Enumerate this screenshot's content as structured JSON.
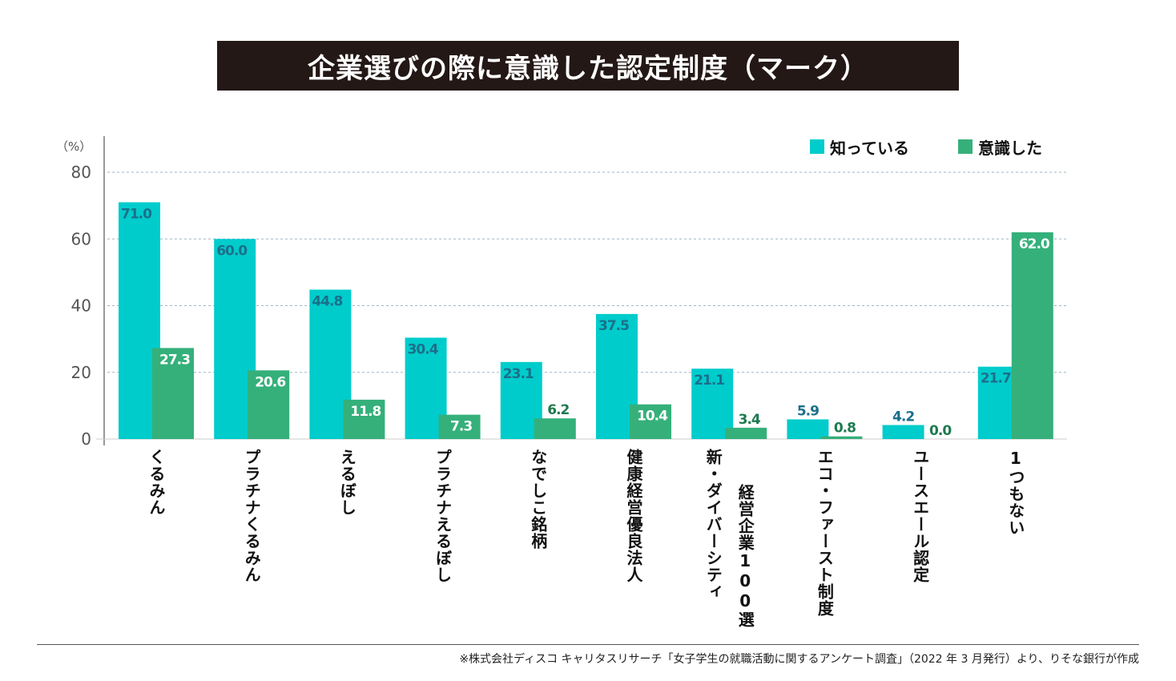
{
  "chart_data": {
    "type": "bar",
    "title": "企業選びの際に意識した認定制度（マーク）",
    "ylabel": "（%）",
    "xlabel": "",
    "ylim": [
      0,
      80
    ],
    "yticks": [
      0,
      20,
      40,
      60,
      80
    ],
    "grid": true,
    "legend_position": "top-right",
    "categories": [
      "くるみん",
      "プラチナくるみん",
      "えるぼし",
      "プラチナえるぼし",
      "なでしこ銘柄",
      "健康経営優良法人",
      "新・ダイバーシティ経営企業100選",
      "エコ・ファースト制度",
      "ユースエール認定",
      "1つもない"
    ],
    "category_display_lines": [
      [
        "くるみん"
      ],
      [
        "プラチナくるみん"
      ],
      [
        "えるぼし"
      ],
      [
        "プラチナえるぼし"
      ],
      [
        "なでしこ銘柄"
      ],
      [
        "健康経営優良法人"
      ],
      [
        "新・ダイバーシティ",
        "経営企業100選"
      ],
      [
        "エコ・ファースト制度"
      ],
      [
        "ユースエール認定"
      ],
      [
        "1つもない"
      ]
    ],
    "series": [
      {
        "name": "知っている",
        "color": "#00CCCC",
        "label_color": "#1B6F8A",
        "values": [
          71.0,
          60.0,
          44.8,
          30.4,
          23.1,
          37.5,
          21.1,
          5.9,
          4.2,
          21.7
        ]
      },
      {
        "name": "意識した",
        "color": "#35B07A",
        "label_color": "#FFFFFF",
        "label_color_outside": "#1E7A4F",
        "values": [
          27.3,
          20.6,
          11.8,
          7.3,
          6.2,
          10.4,
          3.4,
          0.8,
          0.0,
          62.0
        ]
      }
    ]
  },
  "header": {
    "title": "企業選びの際に意識した認定制度（マーク）"
  },
  "footer": {
    "note": "※株式会社ディスコ キャリタスリサーチ「女子学生の就職活動に関するアンケート調査」（2022 年 3 月発行）より、りそな銀行が作成"
  }
}
